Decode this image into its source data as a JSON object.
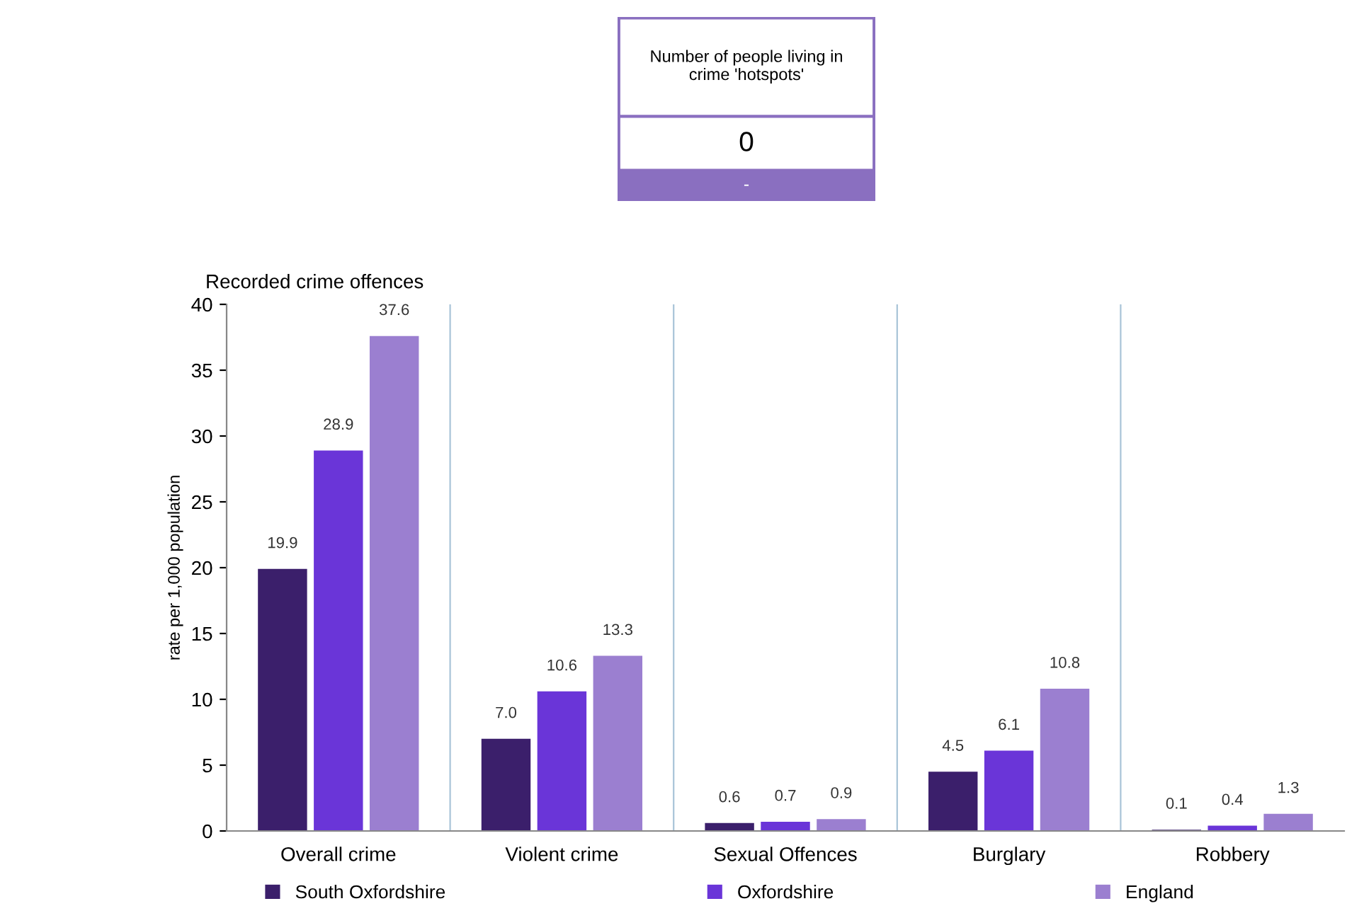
{
  "chart_data": [
    {
      "type": "other",
      "title": "Number of people living in crime 'hotspots'",
      "annotations": [
        "0",
        "-"
      ],
      "color": "#8a6fc0"
    },
    {
      "type": "bar",
      "title": "Recorded crime offences",
      "ylabel": "rate per 1,000 population",
      "categories": [
        "Overall crime",
        "Violent crime",
        "Sexual Offences",
        "Burglary",
        "Robbery"
      ],
      "series": [
        {
          "name": "South Oxfordshire",
          "color": "#3b1f6b",
          "values": [
            19.9,
            7.0,
            0.6,
            4.5,
            0.1
          ],
          "value_labels": [
            "19.9",
            "7.0",
            "0.6",
            "4.5",
            "0.1"
          ]
        },
        {
          "name": "Oxfordshire",
          "color": "#6a35d8",
          "values": [
            28.9,
            10.6,
            0.7,
            6.1,
            0.4
          ],
          "value_labels": [
            "28.9",
            "10.6",
            "0.7",
            "6.1",
            "0.4"
          ]
        },
        {
          "name": "England",
          "color": "#9b7fd0",
          "values": [
            37.6,
            13.3,
            0.9,
            10.8,
            1.3
          ],
          "value_labels": [
            "37.6",
            "13.3",
            "0.9",
            "10.8",
            "1.3"
          ]
        }
      ],
      "ylim": [
        0,
        40
      ],
      "yticks": [
        0,
        5,
        10,
        15,
        20,
        25,
        30,
        35,
        40
      ],
      "grid": "x",
      "legend": "bottom"
    }
  ]
}
